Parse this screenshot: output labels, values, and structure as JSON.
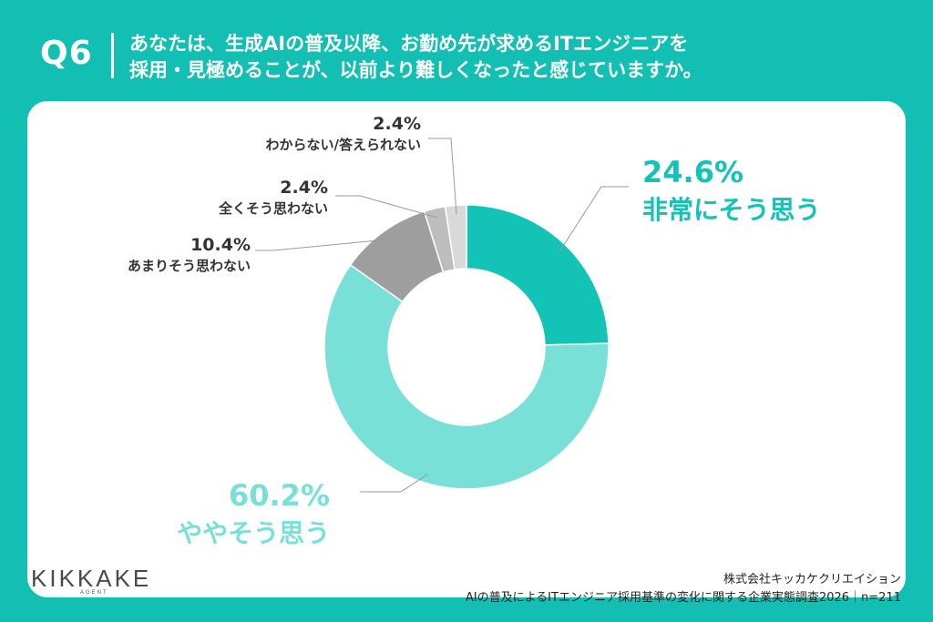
{
  "header": {
    "question_number": "Q6",
    "question_line1": "あなたは、生成AIの普及以降、お勤め先が求めるITエンジニアを",
    "question_line2": "採用・見極めることが、以前より難しくなったと感じていますか。"
  },
  "footer": {
    "logo_text": "KIKKAKE",
    "logo_sub": "AGENT",
    "source_company": "株式会社キッカケクリエイション",
    "source_survey": "AIの普及によるITエンジニア採用基準の変化に関する企業実態調査2026｜n=211"
  },
  "colors": {
    "background": "#12bfb2",
    "card": "#ffffff",
    "accent_dark": "#12c3b6",
    "accent_light": "#79e0d8"
  },
  "chart_data": {
    "type": "pie",
    "donut": true,
    "slices": [
      {
        "label": "非常にそう思う",
        "value": 24.6,
        "value_label": "24.6%",
        "color": "#12c3b6",
        "text_color": "#12c3b6",
        "emphasis": true
      },
      {
        "label": "ややそう思う",
        "value": 60.2,
        "value_label": "60.2%",
        "color": "#79e0d8",
        "text_color": "#79e0d8",
        "emphasis": true
      },
      {
        "label": "あまりそう思わない",
        "value": 10.4,
        "value_label": "10.4%",
        "color": "#9e9e9e",
        "text_color": "#333333",
        "emphasis": false
      },
      {
        "label": "全くそう思わない",
        "value": 2.4,
        "value_label": "2.4%",
        "color": "#bdbdbd",
        "text_color": "#333333",
        "emphasis": false
      },
      {
        "label": "わからない/答えられない",
        "value": 2.4,
        "value_label": "2.4%",
        "color": "#d9d9d9",
        "text_color": "#333333",
        "emphasis": false
      }
    ]
  }
}
